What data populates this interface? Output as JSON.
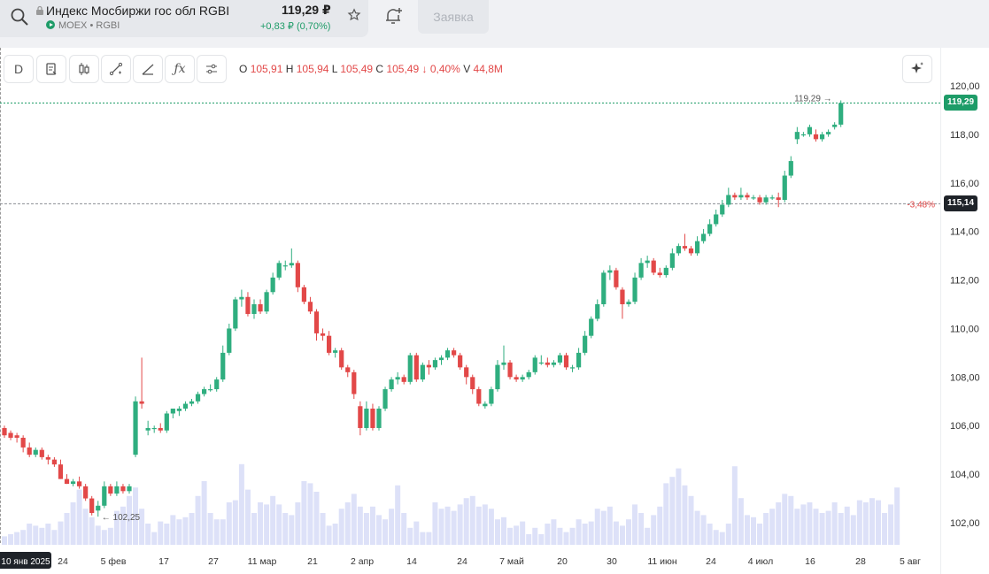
{
  "header": {
    "instrument_name": "Индекс Мосбиржи гос обл RGBI",
    "exchange": "MOEX",
    "ticker": "RGBI",
    "price": "119,29 ₽",
    "change": "+0,83 ₽ (0,70%)",
    "order_button": "Заявка"
  },
  "toolbar": {
    "interval_label": "D",
    "ohlc": {
      "o_label": "O",
      "o_value": "105,91",
      "h_label": "H",
      "h_value": "105,94",
      "l_label": "L",
      "l_value": "105,49",
      "c_label": "C",
      "c_value": "105,49",
      "change": "↓ 0,40%",
      "v_label": "V",
      "v_value": "44,8M"
    },
    "icons": [
      "document-icon",
      "candles-icon",
      "line-tool-icon",
      "draw-tool-icon",
      "function-icon",
      "settings-icon",
      "sparkle-icon"
    ]
  },
  "colors": {
    "up": "#2fae7f",
    "down": "#e24848",
    "volume": "#dde1f8",
    "badge_price": "#1e9c68",
    "badge_dark": "#1f2329"
  },
  "chart_data": {
    "type": "candlestick",
    "title": "",
    "ylim": [
      101.2,
      120.8
    ],
    "y_ticks": [
      "120,00",
      "118,00",
      "116,00",
      "114,00",
      "112,00",
      "110,00",
      "108,00",
      "106,00",
      "104,00",
      "102,00"
    ],
    "x_ticks": [
      "10 янв 2025",
      "24",
      "5 фев",
      "17",
      "27",
      "11 мар",
      "21",
      "2 апр",
      "14",
      "24",
      "7 май",
      "20",
      "30",
      "11 июн",
      "24",
      "4 июл",
      "16",
      "28",
      "5 авг"
    ],
    "last_price_label": "119,29",
    "last_price_value": 119.29,
    "min_marker_label": "← 102,25",
    "min_marker_value": 102.25,
    "ref_level_value": 115.14,
    "ref_level_label": "115,14",
    "ref_level_pct": "-3,48%",
    "candles": [
      {
        "o": 105.9,
        "h": 106.0,
        "l": 105.5,
        "c": 105.6
      },
      {
        "o": 105.7,
        "h": 105.8,
        "l": 105.4,
        "c": 105.5
      },
      {
        "o": 105.6,
        "h": 105.7,
        "l": 105.3,
        "c": 105.5
      },
      {
        "o": 105.5,
        "h": 105.6,
        "l": 104.9,
        "c": 105.1
      },
      {
        "o": 105.1,
        "h": 105.3,
        "l": 104.7,
        "c": 104.8
      },
      {
        "o": 104.8,
        "h": 105.1,
        "l": 104.7,
        "c": 105.0
      },
      {
        "o": 105.0,
        "h": 105.1,
        "l": 104.6,
        "c": 104.7
      },
      {
        "o": 104.7,
        "h": 104.8,
        "l": 104.4,
        "c": 104.6
      },
      {
        "o": 104.6,
        "h": 104.7,
        "l": 104.3,
        "c": 104.4
      },
      {
        "o": 104.4,
        "h": 104.6,
        "l": 103.8,
        "c": 103.8
      },
      {
        "o": 103.8,
        "h": 104.0,
        "l": 103.6,
        "c": 103.6
      },
      {
        "o": 103.6,
        "h": 103.8,
        "l": 103.5,
        "c": 103.7
      },
      {
        "o": 103.7,
        "h": 103.9,
        "l": 103.4,
        "c": 103.5
      },
      {
        "o": 103.5,
        "h": 103.6,
        "l": 102.9,
        "c": 103.0
      },
      {
        "o": 103.0,
        "h": 103.1,
        "l": 102.3,
        "c": 102.4
      },
      {
        "o": 102.5,
        "h": 102.9,
        "l": 102.25,
        "c": 102.7
      },
      {
        "o": 102.7,
        "h": 103.7,
        "l": 102.6,
        "c": 103.5
      },
      {
        "o": 103.5,
        "h": 103.6,
        "l": 103.1,
        "c": 103.2
      },
      {
        "o": 103.2,
        "h": 103.7,
        "l": 103.1,
        "c": 103.5
      },
      {
        "o": 103.5,
        "h": 103.6,
        "l": 103.2,
        "c": 103.3
      },
      {
        "o": 103.3,
        "h": 103.6,
        "l": 103.2,
        "c": 103.5
      },
      {
        "o": 104.8,
        "h": 107.2,
        "l": 104.7,
        "c": 107.0
      },
      {
        "o": 107.0,
        "h": 108.8,
        "l": 106.7,
        "c": 106.9
      },
      {
        "o": 105.8,
        "h": 106.2,
        "l": 105.6,
        "c": 105.9
      },
      {
        "o": 105.9,
        "h": 106.0,
        "l": 105.7,
        "c": 105.9
      },
      {
        "o": 105.9,
        "h": 106.1,
        "l": 105.7,
        "c": 105.8
      },
      {
        "o": 105.8,
        "h": 106.6,
        "l": 105.7,
        "c": 106.5
      },
      {
        "o": 106.5,
        "h": 106.7,
        "l": 106.3,
        "c": 106.7
      },
      {
        "o": 106.6,
        "h": 106.8,
        "l": 106.4,
        "c": 106.7
      },
      {
        "o": 106.7,
        "h": 107.0,
        "l": 106.6,
        "c": 106.9
      },
      {
        "o": 106.9,
        "h": 107.1,
        "l": 106.8,
        "c": 107.0
      },
      {
        "o": 107.0,
        "h": 107.4,
        "l": 106.9,
        "c": 107.3
      },
      {
        "o": 107.3,
        "h": 107.6,
        "l": 107.2,
        "c": 107.5
      },
      {
        "o": 107.5,
        "h": 107.7,
        "l": 107.4,
        "c": 107.5
      },
      {
        "o": 107.5,
        "h": 108.0,
        "l": 107.4,
        "c": 107.9
      },
      {
        "o": 107.9,
        "h": 109.3,
        "l": 107.8,
        "c": 109.0
      },
      {
        "o": 109.0,
        "h": 110.2,
        "l": 108.9,
        "c": 110.0
      },
      {
        "o": 110.0,
        "h": 111.3,
        "l": 109.9,
        "c": 111.2
      },
      {
        "o": 111.2,
        "h": 111.6,
        "l": 110.9,
        "c": 111.3
      },
      {
        "o": 111.3,
        "h": 111.5,
        "l": 110.5,
        "c": 110.6
      },
      {
        "o": 110.6,
        "h": 111.2,
        "l": 110.4,
        "c": 111.0
      },
      {
        "o": 111.0,
        "h": 111.2,
        "l": 110.6,
        "c": 110.7
      },
      {
        "o": 110.7,
        "h": 111.6,
        "l": 110.6,
        "c": 111.5
      },
      {
        "o": 111.5,
        "h": 112.3,
        "l": 111.4,
        "c": 112.1
      },
      {
        "o": 112.1,
        "h": 112.8,
        "l": 112.0,
        "c": 112.7
      },
      {
        "o": 112.6,
        "h": 112.8,
        "l": 112.4,
        "c": 112.6
      },
      {
        "o": 112.6,
        "h": 113.3,
        "l": 112.5,
        "c": 112.7
      },
      {
        "o": 112.7,
        "h": 112.8,
        "l": 111.5,
        "c": 111.7
      },
      {
        "o": 111.7,
        "h": 111.8,
        "l": 111.0,
        "c": 111.1
      },
      {
        "o": 111.1,
        "h": 111.3,
        "l": 110.6,
        "c": 110.7
      },
      {
        "o": 110.7,
        "h": 110.8,
        "l": 109.5,
        "c": 109.8
      },
      {
        "o": 109.8,
        "h": 110.0,
        "l": 109.5,
        "c": 109.7
      },
      {
        "o": 109.7,
        "h": 109.9,
        "l": 108.9,
        "c": 109.0
      },
      {
        "o": 109.0,
        "h": 109.2,
        "l": 108.8,
        "c": 109.1
      },
      {
        "o": 109.1,
        "h": 109.2,
        "l": 108.3,
        "c": 108.4
      },
      {
        "o": 108.4,
        "h": 108.5,
        "l": 108.0,
        "c": 108.2
      },
      {
        "o": 108.2,
        "h": 108.3,
        "l": 107.1,
        "c": 107.3
      },
      {
        "o": 106.8,
        "h": 107.0,
        "l": 105.6,
        "c": 105.9
      },
      {
        "o": 105.9,
        "h": 107.0,
        "l": 105.8,
        "c": 106.7
      },
      {
        "o": 106.7,
        "h": 106.9,
        "l": 105.8,
        "c": 105.9
      },
      {
        "o": 105.9,
        "h": 106.8,
        "l": 105.8,
        "c": 106.7
      },
      {
        "o": 106.7,
        "h": 107.6,
        "l": 106.6,
        "c": 107.5
      },
      {
        "o": 107.5,
        "h": 108.0,
        "l": 107.4,
        "c": 107.9
      },
      {
        "o": 107.9,
        "h": 108.2,
        "l": 107.7,
        "c": 108.0
      },
      {
        "o": 108.0,
        "h": 108.1,
        "l": 107.7,
        "c": 107.8
      },
      {
        "o": 107.8,
        "h": 109.0,
        "l": 107.7,
        "c": 108.9
      },
      {
        "o": 108.9,
        "h": 109.0,
        "l": 107.8,
        "c": 107.9
      },
      {
        "o": 107.9,
        "h": 108.6,
        "l": 107.8,
        "c": 108.5
      },
      {
        "o": 108.5,
        "h": 108.7,
        "l": 108.1,
        "c": 108.4
      },
      {
        "o": 108.4,
        "h": 108.8,
        "l": 108.3,
        "c": 108.7
      },
      {
        "o": 108.7,
        "h": 108.9,
        "l": 108.5,
        "c": 108.8
      },
      {
        "o": 108.8,
        "h": 109.2,
        "l": 108.7,
        "c": 109.1
      },
      {
        "o": 109.1,
        "h": 109.2,
        "l": 108.8,
        "c": 108.9
      },
      {
        "o": 108.9,
        "h": 109.0,
        "l": 108.3,
        "c": 108.4
      },
      {
        "o": 108.4,
        "h": 108.5,
        "l": 107.7,
        "c": 108.0
      },
      {
        "o": 108.0,
        "h": 108.1,
        "l": 107.3,
        "c": 107.5
      },
      {
        "o": 107.5,
        "h": 107.6,
        "l": 106.8,
        "c": 106.9
      },
      {
        "o": 106.8,
        "h": 107.0,
        "l": 106.7,
        "c": 106.9
      },
      {
        "o": 106.9,
        "h": 107.6,
        "l": 106.8,
        "c": 107.5
      },
      {
        "o": 107.5,
        "h": 108.7,
        "l": 107.4,
        "c": 108.5
      },
      {
        "o": 108.5,
        "h": 109.3,
        "l": 108.3,
        "c": 108.6
      },
      {
        "o": 108.6,
        "h": 108.7,
        "l": 107.9,
        "c": 108.0
      },
      {
        "o": 108.0,
        "h": 108.1,
        "l": 107.8,
        "c": 107.9
      },
      {
        "o": 107.9,
        "h": 108.1,
        "l": 107.8,
        "c": 108.0
      },
      {
        "o": 108.0,
        "h": 108.3,
        "l": 107.9,
        "c": 108.2
      },
      {
        "o": 108.2,
        "h": 108.9,
        "l": 108.1,
        "c": 108.8
      },
      {
        "o": 108.6,
        "h": 108.9,
        "l": 108.5,
        "c": 108.6
      },
      {
        "o": 108.6,
        "h": 108.8,
        "l": 108.4,
        "c": 108.5
      },
      {
        "o": 108.5,
        "h": 108.7,
        "l": 108.4,
        "c": 108.6
      },
      {
        "o": 108.6,
        "h": 109.0,
        "l": 108.5,
        "c": 108.9
      },
      {
        "o": 108.9,
        "h": 109.0,
        "l": 108.3,
        "c": 108.4
      },
      {
        "o": 108.4,
        "h": 108.5,
        "l": 108.2,
        "c": 108.4
      },
      {
        "o": 108.4,
        "h": 109.2,
        "l": 108.3,
        "c": 109.0
      },
      {
        "o": 109.0,
        "h": 109.9,
        "l": 108.9,
        "c": 109.7
      },
      {
        "o": 109.7,
        "h": 110.5,
        "l": 109.6,
        "c": 110.4
      },
      {
        "o": 110.4,
        "h": 111.2,
        "l": 110.3,
        "c": 111.0
      },
      {
        "o": 111.0,
        "h": 112.4,
        "l": 110.9,
        "c": 112.3
      },
      {
        "o": 112.3,
        "h": 112.6,
        "l": 112.0,
        "c": 112.4
      },
      {
        "o": 112.4,
        "h": 112.5,
        "l": 111.6,
        "c": 111.7
      },
      {
        "o": 111.6,
        "h": 111.7,
        "l": 110.4,
        "c": 111.0
      },
      {
        "o": 111.0,
        "h": 111.2,
        "l": 110.9,
        "c": 111.1
      },
      {
        "o": 111.1,
        "h": 112.3,
        "l": 111.0,
        "c": 112.1
      },
      {
        "o": 112.1,
        "h": 112.9,
        "l": 112.0,
        "c": 112.7
      },
      {
        "o": 112.7,
        "h": 113.0,
        "l": 112.5,
        "c": 112.8
      },
      {
        "o": 112.8,
        "h": 112.9,
        "l": 112.2,
        "c": 112.3
      },
      {
        "o": 112.3,
        "h": 112.5,
        "l": 112.1,
        "c": 112.2
      },
      {
        "o": 112.2,
        "h": 112.6,
        "l": 112.1,
        "c": 112.5
      },
      {
        "o": 112.5,
        "h": 113.3,
        "l": 112.4,
        "c": 113.1
      },
      {
        "o": 113.1,
        "h": 113.5,
        "l": 113.0,
        "c": 113.4
      },
      {
        "o": 113.4,
        "h": 113.9,
        "l": 113.2,
        "c": 113.3
      },
      {
        "o": 113.3,
        "h": 113.4,
        "l": 113.0,
        "c": 113.1
      },
      {
        "o": 113.1,
        "h": 113.8,
        "l": 113.0,
        "c": 113.6
      },
      {
        "o": 113.6,
        "h": 114.1,
        "l": 113.5,
        "c": 113.9
      },
      {
        "o": 113.9,
        "h": 114.5,
        "l": 113.8,
        "c": 114.3
      },
      {
        "o": 114.3,
        "h": 114.9,
        "l": 114.2,
        "c": 114.7
      },
      {
        "o": 114.7,
        "h": 115.3,
        "l": 114.6,
        "c": 115.1
      },
      {
        "o": 115.1,
        "h": 115.8,
        "l": 115.0,
        "c": 115.5
      },
      {
        "o": 115.5,
        "h": 115.6,
        "l": 115.3,
        "c": 115.4
      },
      {
        "o": 115.4,
        "h": 115.8,
        "l": 115.3,
        "c": 115.5
      },
      {
        "o": 115.5,
        "h": 115.6,
        "l": 115.3,
        "c": 115.4
      },
      {
        "o": 115.4,
        "h": 115.5,
        "l": 115.3,
        "c": 115.4
      },
      {
        "o": 115.4,
        "h": 115.5,
        "l": 115.1,
        "c": 115.2
      },
      {
        "o": 115.2,
        "h": 115.5,
        "l": 115.1,
        "c": 115.4
      },
      {
        "o": 115.4,
        "h": 115.5,
        "l": 115.3,
        "c": 115.4
      },
      {
        "o": 115.4,
        "h": 115.6,
        "l": 115.0,
        "c": 115.3
      },
      {
        "o": 115.3,
        "h": 116.5,
        "l": 115.2,
        "c": 116.3
      },
      {
        "o": 116.3,
        "h": 117.1,
        "l": 116.2,
        "c": 116.9
      },
      {
        "o": 117.8,
        "h": 118.3,
        "l": 117.6,
        "c": 118.1
      },
      {
        "o": 118.0,
        "h": 118.1,
        "l": 117.9,
        "c": 118.0
      },
      {
        "o": 118.0,
        "h": 118.4,
        "l": 117.9,
        "c": 118.3
      },
      {
        "o": 118.0,
        "h": 118.2,
        "l": 117.7,
        "c": 117.8
      },
      {
        "o": 117.8,
        "h": 118.1,
        "l": 117.7,
        "c": 118.0
      },
      {
        "o": 118.0,
        "h": 118.2,
        "l": 117.9,
        "c": 118.1
      },
      {
        "o": 118.3,
        "h": 118.5,
        "l": 118.2,
        "c": 118.4
      },
      {
        "o": 118.4,
        "h": 119.4,
        "l": 118.3,
        "c": 119.29
      }
    ],
    "volume": [
      0.08,
      0.1,
      0.12,
      0.14,
      0.2,
      0.18,
      0.16,
      0.2,
      0.14,
      0.22,
      0.3,
      0.4,
      0.52,
      0.34,
      0.26,
      0.18,
      0.14,
      0.16,
      0.32,
      0.36,
      0.46,
      0.54,
      0.34,
      0.2,
      0.12,
      0.22,
      0.2,
      0.28,
      0.24,
      0.26,
      0.3,
      0.46,
      0.6,
      0.3,
      0.24,
      0.24,
      0.4,
      0.42,
      0.76,
      0.52,
      0.3,
      0.4,
      0.38,
      0.46,
      0.38,
      0.3,
      0.28,
      0.4,
      0.6,
      0.58,
      0.5,
      0.3,
      0.18,
      0.2,
      0.34,
      0.4,
      0.48,
      0.36,
      0.3,
      0.36,
      0.28,
      0.24,
      0.34,
      0.56,
      0.3,
      0.16,
      0.22,
      0.12,
      0.12,
      0.4,
      0.34,
      0.36,
      0.32,
      0.38,
      0.44,
      0.46,
      0.36,
      0.38,
      0.34,
      0.24,
      0.26,
      0.16,
      0.18,
      0.22,
      0.1,
      0.16,
      0.1,
      0.2,
      0.24,
      0.16,
      0.12,
      0.16,
      0.24,
      0.2,
      0.22,
      0.34,
      0.32,
      0.36,
      0.22,
      0.18,
      0.24,
      0.38,
      0.3,
      0.16,
      0.28,
      0.36,
      0.58,
      0.64,
      0.72,
      0.56,
      0.46,
      0.32,
      0.28,
      0.2,
      0.14,
      0.12,
      0.2,
      0.74,
      0.44,
      0.28,
      0.26,
      0.2,
      0.3,
      0.34,
      0.4,
      0.48,
      0.46,
      0.34,
      0.38,
      0.4,
      0.34,
      0.3,
      0.32,
      0.4,
      0.3,
      0.36,
      0.28,
      0.42,
      0.4,
      0.44,
      0.42,
      0.3,
      0.38,
      0.54
    ]
  }
}
